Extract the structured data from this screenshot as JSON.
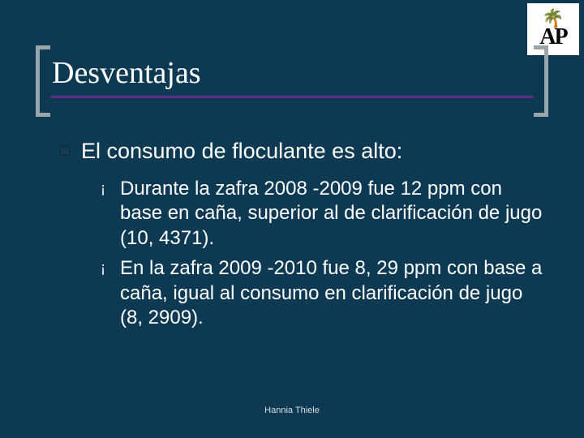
{
  "colors": {
    "background": "#0d3a52",
    "title_text": "#ffffff",
    "body_text": "#ffffff",
    "bracket": "#9aa6ab",
    "underline": "#5b2e8c",
    "lvl1_bullet_fill": "#173b4f",
    "footer_text": "#d8dde0",
    "logo_bg": "#ffffff"
  },
  "typography": {
    "title_font": "Times New Roman",
    "title_size_pt": 28,
    "body_font": "Arial",
    "lvl1_size_pt": 20,
    "lvl2_size_pt": 18,
    "footer_size_pt": 8
  },
  "logo": {
    "palm_glyph": "🌴",
    "text": "AP"
  },
  "title": "Desventajas",
  "bullets": {
    "lvl1": {
      "text": "El consumo de floculante es alto:"
    },
    "lvl2": [
      {
        "text": "Durante la zafra 2008 -2009 fue 12 ppm con base en caña, superior al de clarificación de jugo (10, 4371)."
      },
      {
        "text": "En la zafra 2009 -2010 fue 8, 29 ppm con base a caña, igual al consumo en clarificación de jugo (8, 2909)."
      }
    ]
  },
  "lvl2_bullet_glyph": "¡",
  "footer": "Hannia Thiele"
}
